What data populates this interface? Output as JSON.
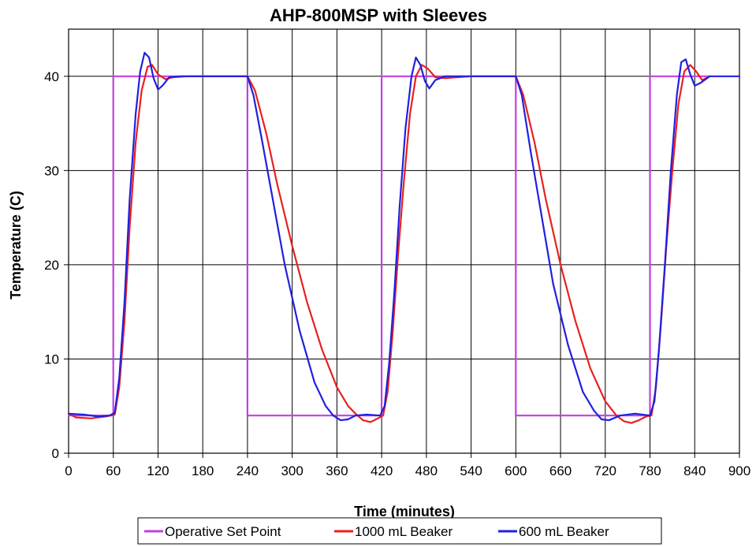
{
  "chart_data": {
    "type": "line",
    "title": "AHP-800MSP with Sleeves",
    "xlabel": "Time (minutes)",
    "ylabel": "Temperature (C)",
    "xlim": [
      0,
      900
    ],
    "ylim": [
      0,
      45
    ],
    "xticks": [
      0,
      60,
      120,
      180,
      240,
      300,
      360,
      420,
      480,
      540,
      600,
      660,
      720,
      780,
      840,
      900
    ],
    "yticks": [
      0,
      10,
      20,
      30,
      40
    ],
    "grid": true,
    "legend_position": "bottom",
    "series": [
      {
        "name": "Operative Set Point",
        "color": "#c040e0",
        "x": [
          0,
          60,
          60,
          240,
          240,
          420,
          420,
          600,
          600,
          780,
          780,
          860
        ],
        "y": [
          4,
          4,
          40,
          40,
          4,
          4,
          40,
          40,
          4,
          4,
          40,
          40
        ]
      },
      {
        "name": "1000 mL Beaker",
        "color": "#e82020",
        "x": [
          0,
          10,
          30,
          50,
          62,
          68,
          75,
          82,
          90,
          98,
          106,
          112,
          120,
          130,
          140,
          160,
          200,
          240,
          250,
          265,
          280,
          300,
          320,
          340,
          360,
          375,
          385,
          395,
          405,
          415,
          422,
          428,
          435,
          442,
          450,
          458,
          466,
          474,
          482,
          492,
          505,
          540,
          600,
          610,
          625,
          640,
          660,
          680,
          700,
          720,
          735,
          745,
          755,
          765,
          775,
          782,
          788,
          795,
          802,
          810,
          818,
          826,
          834,
          842,
          850,
          858
        ],
        "y": [
          4.2,
          3.8,
          3.7,
          3.9,
          4.1,
          7,
          14,
          24,
          33,
          38.5,
          41,
          41.2,
          40.2,
          39.7,
          39.9,
          40,
          40,
          40,
          38.5,
          34,
          28.5,
          22,
          16,
          11,
          7,
          5,
          4.2,
          3.5,
          3.3,
          3.7,
          4,
          6.5,
          13,
          21,
          29,
          36,
          40,
          41.2,
          40.8,
          39.9,
          39.8,
          40,
          40,
          38,
          33,
          27,
          20,
          14,
          9,
          5.5,
          4,
          3.4,
          3.2,
          3.5,
          3.9,
          4,
          7,
          14,
          22,
          30,
          37,
          40.5,
          41.2,
          40.5,
          39.6,
          39.9
        ]
      },
      {
        "name": "600 mL Beaker",
        "color": "#2020e0",
        "x": [
          0,
          20,
          40,
          55,
          62,
          68,
          75,
          82,
          90,
          96,
          102,
          108,
          114,
          120,
          126,
          135,
          150,
          200,
          240,
          248,
          260,
          275,
          290,
          310,
          330,
          345,
          355,
          365,
          375,
          385,
          400,
          418,
          424,
          430,
          437,
          444,
          452,
          460,
          466,
          472,
          478,
          484,
          492,
          505,
          540,
          600,
          608,
          620,
          635,
          650,
          670,
          690,
          705,
          715,
          725,
          740,
          760,
          780,
          786,
          792,
          800,
          808,
          816,
          822,
          828,
          834,
          840,
          848,
          860,
          900
        ],
        "y": [
          4.2,
          4.1,
          3.9,
          4,
          4.3,
          8,
          16,
          27,
          36,
          40.5,
          42.5,
          42,
          39.8,
          38.6,
          39,
          39.9,
          40,
          40,
          40,
          38,
          33,
          26.5,
          20,
          13,
          7.5,
          5,
          4,
          3.5,
          3.6,
          4,
          4.1,
          4,
          5,
          9.5,
          17,
          26,
          34.5,
          40,
          42,
          41.2,
          39.5,
          38.7,
          39.6,
          40,
          40,
          40,
          38,
          32,
          25,
          18,
          11.5,
          6.5,
          4.5,
          3.6,
          3.5,
          4,
          4.2,
          4,
          5.5,
          11,
          20,
          30,
          38,
          41.5,
          41.8,
          40.2,
          39,
          39.3,
          40,
          40
        ]
      }
    ]
  }
}
